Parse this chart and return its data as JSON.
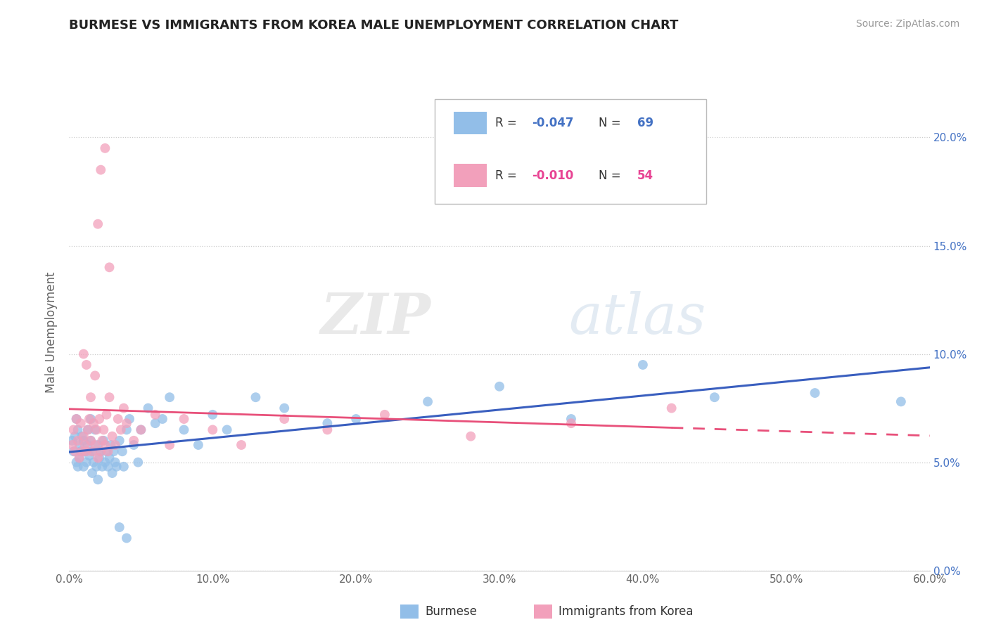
{
  "title": "BURMESE VS IMMIGRANTS FROM KOREA MALE UNEMPLOYMENT CORRELATION CHART",
  "source": "Source: ZipAtlas.com",
  "ylabel": "Male Unemployment",
  "xlim": [
    0.0,
    0.6
  ],
  "ylim": [
    0.0,
    0.22
  ],
  "xticks": [
    0.0,
    0.1,
    0.2,
    0.3,
    0.4,
    0.5,
    0.6
  ],
  "xticklabels": [
    "0.0%",
    "10.0%",
    "20.0%",
    "30.0%",
    "40.0%",
    "50.0%",
    "60.0%"
  ],
  "yticks": [
    0.0,
    0.05,
    0.1,
    0.15,
    0.2
  ],
  "yticklabels_right": [
    "0.0%",
    "5.0%",
    "10.0%",
    "15.0%",
    "20.0%"
  ],
  "color_burmese": "#92BEE8",
  "color_korea": "#F2A0BB",
  "color_burmese_line": "#3A5FBF",
  "color_korea_line": "#E8507A",
  "watermark_zip": "ZIP",
  "watermark_atlas": "atlas",
  "burmese_x": [
    0.002,
    0.003,
    0.004,
    0.005,
    0.005,
    0.006,
    0.006,
    0.007,
    0.007,
    0.008,
    0.009,
    0.01,
    0.01,
    0.011,
    0.012,
    0.013,
    0.013,
    0.014,
    0.015,
    0.015,
    0.016,
    0.016,
    0.017,
    0.018,
    0.019,
    0.02,
    0.02,
    0.021,
    0.022,
    0.023,
    0.024,
    0.025,
    0.026,
    0.027,
    0.028,
    0.029,
    0.03,
    0.031,
    0.032,
    0.033,
    0.035,
    0.037,
    0.038,
    0.04,
    0.042,
    0.045,
    0.048,
    0.05,
    0.055,
    0.06,
    0.065,
    0.07,
    0.08,
    0.09,
    0.1,
    0.11,
    0.13,
    0.15,
    0.18,
    0.2,
    0.25,
    0.3,
    0.35,
    0.4,
    0.45,
    0.52,
    0.58,
    0.035,
    0.04
  ],
  "burmese_y": [
    0.06,
    0.055,
    0.062,
    0.05,
    0.07,
    0.048,
    0.065,
    0.052,
    0.058,
    0.055,
    0.062,
    0.048,
    0.06,
    0.055,
    0.05,
    0.058,
    0.065,
    0.053,
    0.06,
    0.07,
    0.045,
    0.055,
    0.05,
    0.065,
    0.048,
    0.058,
    0.042,
    0.052,
    0.055,
    0.048,
    0.06,
    0.05,
    0.055,
    0.048,
    0.052,
    0.058,
    0.045,
    0.055,
    0.05,
    0.048,
    0.06,
    0.055,
    0.048,
    0.065,
    0.07,
    0.058,
    0.05,
    0.065,
    0.075,
    0.068,
    0.07,
    0.08,
    0.065,
    0.058,
    0.072,
    0.065,
    0.08,
    0.075,
    0.068,
    0.07,
    0.078,
    0.085,
    0.07,
    0.095,
    0.08,
    0.082,
    0.078,
    0.02,
    0.015
  ],
  "korea_x": [
    0.002,
    0.003,
    0.004,
    0.005,
    0.006,
    0.007,
    0.008,
    0.009,
    0.01,
    0.011,
    0.012,
    0.013,
    0.014,
    0.015,
    0.016,
    0.017,
    0.018,
    0.019,
    0.02,
    0.021,
    0.022,
    0.023,
    0.024,
    0.025,
    0.026,
    0.027,
    0.028,
    0.03,
    0.032,
    0.034,
    0.036,
    0.038,
    0.04,
    0.045,
    0.05,
    0.06,
    0.07,
    0.08,
    0.1,
    0.12,
    0.15,
    0.18,
    0.22,
    0.28,
    0.35,
    0.42,
    0.01,
    0.012,
    0.015,
    0.018,
    0.02,
    0.022,
    0.025,
    0.028
  ],
  "korea_y": [
    0.058,
    0.065,
    0.055,
    0.07,
    0.06,
    0.052,
    0.068,
    0.055,
    0.062,
    0.058,
    0.055,
    0.065,
    0.07,
    0.06,
    0.055,
    0.068,
    0.058,
    0.065,
    0.052,
    0.07,
    0.055,
    0.06,
    0.065,
    0.058,
    0.072,
    0.055,
    0.08,
    0.062,
    0.058,
    0.07,
    0.065,
    0.075,
    0.068,
    0.06,
    0.065,
    0.072,
    0.058,
    0.07,
    0.065,
    0.058,
    0.07,
    0.065,
    0.072,
    0.062,
    0.068,
    0.075,
    0.1,
    0.095,
    0.08,
    0.09,
    0.16,
    0.185,
    0.195,
    0.14
  ]
}
